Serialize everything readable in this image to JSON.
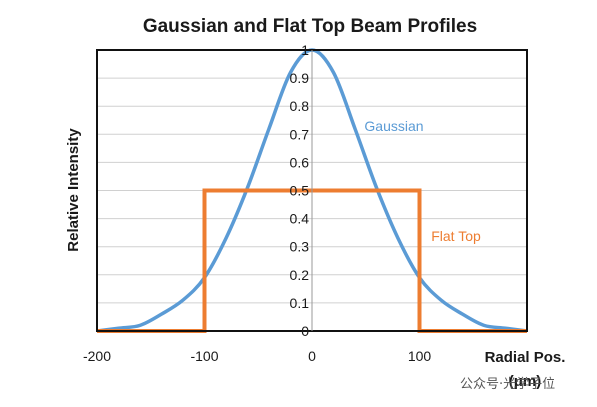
{
  "chart_data": {
    "type": "line",
    "title": "Gaussian and Flat Top Beam Profiles",
    "xlabel_line1": "Radial Pos.",
    "xlabel_line2": "(μm)",
    "ylabel": "Relative Intensity",
    "xlim": [
      -200,
      200
    ],
    "ylim": [
      0,
      1
    ],
    "x_ticks": [
      "-200",
      "-100",
      "0",
      "100"
    ],
    "x_tick_values": [
      -200,
      -100,
      0,
      100
    ],
    "y_ticks": [
      "0",
      "0.1",
      "0.2",
      "0.3",
      "0.4",
      "0.5",
      "0.6",
      "0.7",
      "0.8",
      "0.9",
      "1"
    ],
    "y_tick_values": [
      0,
      0.1,
      0.2,
      0.3,
      0.4,
      0.5,
      0.6,
      0.7,
      0.8,
      0.9,
      1
    ],
    "grid": "horizontal",
    "series": [
      {
        "name": "Gaussian",
        "color": "#5b9bd5",
        "x": [
          -200,
          -180,
          -160,
          -140,
          -120,
          -100,
          -80,
          -60,
          -40,
          -20,
          0,
          20,
          40,
          60,
          80,
          100,
          120,
          140,
          160,
          180,
          200
        ],
        "y": [
          0.0,
          0.01,
          0.02,
          0.06,
          0.11,
          0.19,
          0.33,
          0.51,
          0.72,
          0.92,
          1.0,
          0.92,
          0.72,
          0.51,
          0.33,
          0.19,
          0.11,
          0.06,
          0.02,
          0.01,
          0.0
        ]
      },
      {
        "name": "Flat Top",
        "color": "#ed7d31",
        "x": [
          -200,
          -100,
          -100,
          100,
          100,
          200
        ],
        "y": [
          0.0,
          0.0,
          0.5,
          0.5,
          0.0,
          0.0
        ]
      }
    ]
  },
  "watermark": "公众号·光学子位"
}
